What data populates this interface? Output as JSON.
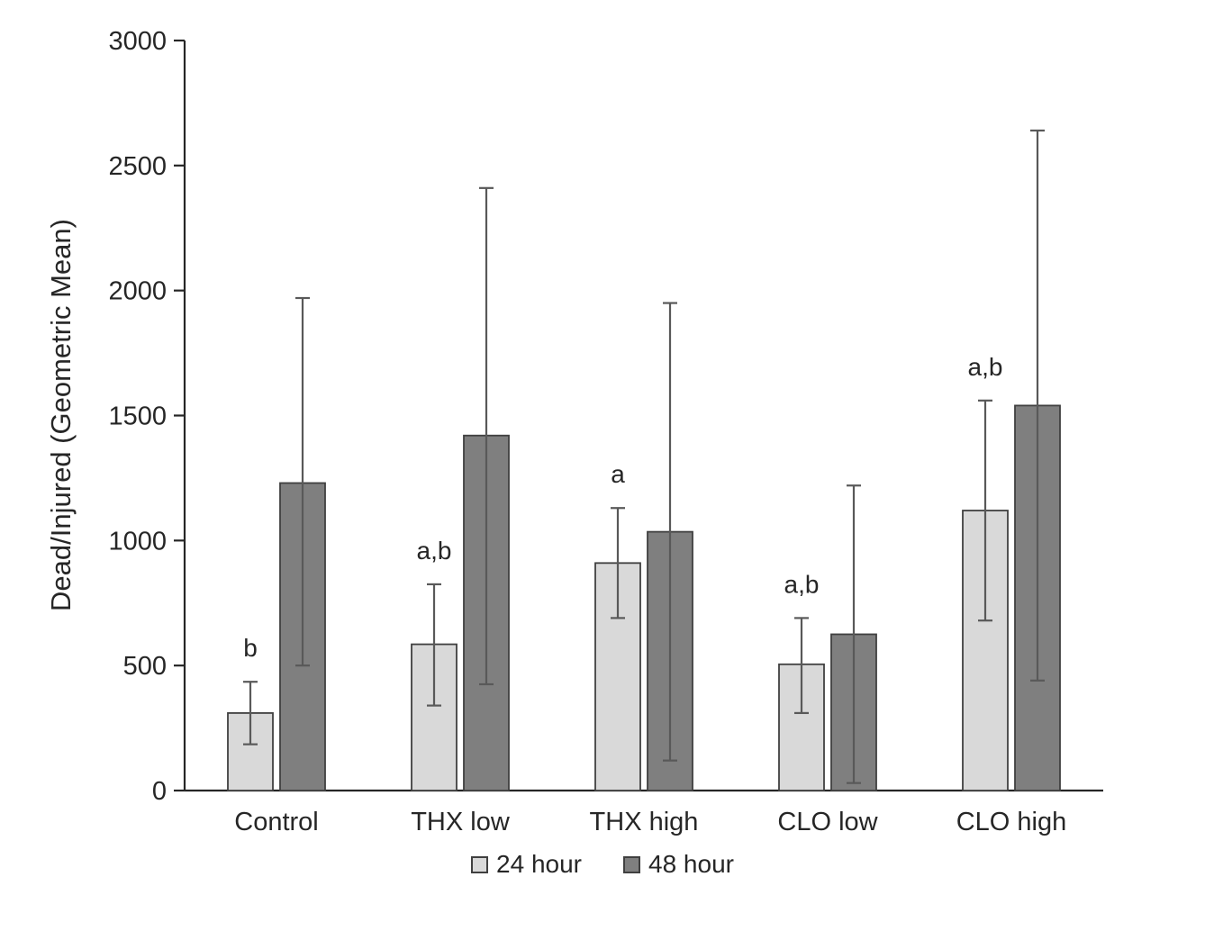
{
  "chart_data": {
    "type": "bar",
    "title": "",
    "xlabel": "",
    "ylabel": "Dead/Injured (Geometric Mean)",
    "ylim": [
      0,
      3000
    ],
    "yticks": [
      0,
      500,
      1000,
      1500,
      2000,
      2500,
      3000
    ],
    "grid": false,
    "legend_position": "bottom",
    "categories": [
      "Control",
      "THX low",
      "THX high",
      "CLO low",
      "CLO high"
    ],
    "series": [
      {
        "name": "24 hour",
        "color": "#d9d9d9",
        "values": [
          310,
          585,
          910,
          505,
          1120
        ],
        "error_low": [
          185,
          340,
          690,
          310,
          680
        ],
        "error_high": [
          435,
          825,
          1130,
          690,
          1560
        ],
        "labels": [
          "b",
          "a,b",
          "a",
          "a,b",
          "a,b"
        ]
      },
      {
        "name": "48 hour",
        "color": "#7f7f7f",
        "values": [
          1230,
          1420,
          1035,
          625,
          1540
        ],
        "error_low": [
          500,
          425,
          120,
          30,
          440
        ],
        "error_high": [
          1970,
          2410,
          1950,
          1220,
          2640
        ],
        "labels": [
          "",
          "",
          "",
          "",
          ""
        ]
      }
    ]
  }
}
